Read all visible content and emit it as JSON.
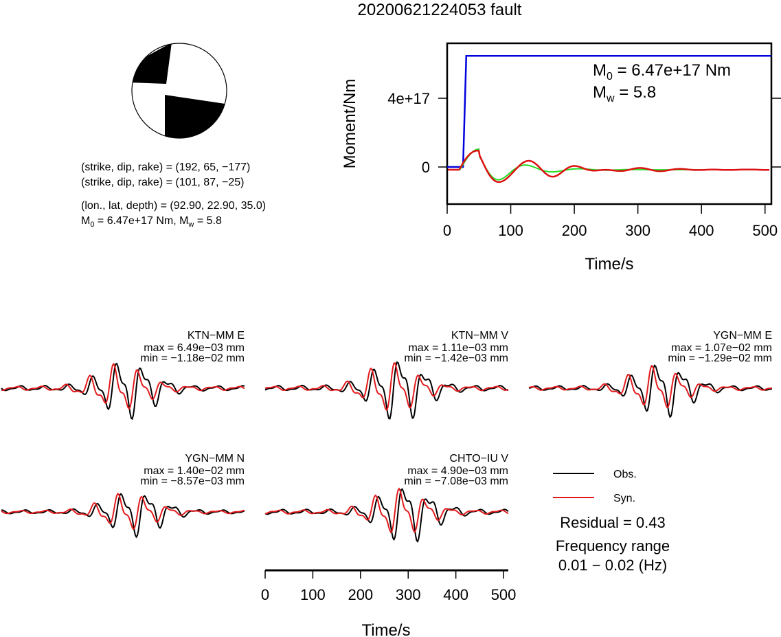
{
  "title": "20200621224053 fault",
  "beachball": {
    "planes": [
      "(strike, dip, rake) = (192, 65, −177)",
      "(strike, dip, rake) = (101, 87, −25)"
    ],
    "location": "(lon., lat, depth) = (92.90, 22.90, 35.0)",
    "m0_prefix": "M",
    "m0_sub": "0",
    "m0_rest": " = 6.47e+17 Nm, M",
    "mw_sub": "w",
    "mw_rest": " = 5.8"
  },
  "colors": {
    "observed": "#000000",
    "synthetic": "#e31a1c",
    "moment": "#0000dd",
    "source_time": "#22dd22"
  },
  "chart_data": [
    {
      "type": "line",
      "name": "moment-function",
      "xlabel": "Time/s",
      "ylabel": "Moment/Nm",
      "xlim": [
        0,
        510
      ],
      "xticks": [
        "0",
        "100",
        "200",
        "300",
        "400",
        "500"
      ],
      "yticks": [
        "0",
        "4e+17"
      ],
      "annotation": {
        "m0_prefix": "M",
        "m0_sub": "0",
        "m0_rest": " = 6.47e+17 Nm",
        "mw_prefix": "M",
        "mw_sub": "w",
        "mw_rest": " = 5.8"
      },
      "series": [
        {
          "color": "#0000dd",
          "x": [
            0,
            25,
            30,
            510
          ],
          "y": [
            0,
            0,
            6.47e+17,
            6.47e+17
          ]
        }
      ]
    },
    {
      "type": "line",
      "name": "waveform-fits",
      "xlabel": "Time/s",
      "xlim": [
        0,
        510
      ],
      "xticks": [
        "0",
        "100",
        "200",
        "300",
        "400",
        "500"
      ],
      "legend": {
        "obs": "Obs.",
        "syn": "Syn."
      },
      "residual": "Residual = 0.43",
      "freq_title": "Frequency range",
      "freq_value": "0.01 − 0.02 (Hz)",
      "stations": [
        {
          "label": "KTN−MM E",
          "max": "max = 6.49e−03 mm",
          "min": "min = −1.18e−02 mm"
        },
        {
          "label": "KTN−MM V",
          "max": "max = 1.11e−03 mm",
          "min": "min = −1.42e−03 mm"
        },
        {
          "label": "YGN−MM E",
          "max": "max = 1.07e−02 mm",
          "min": "min = −1.29e−02 mm"
        },
        {
          "label": "YGN−MM N",
          "max": "max = 1.40e−02 mm",
          "min": "min = −8.57e−03 mm"
        },
        {
          "label": "CHTO−IU V",
          "max": "max = 4.90e−03 mm",
          "min": "min = −7.08e−03 mm"
        }
      ]
    }
  ]
}
